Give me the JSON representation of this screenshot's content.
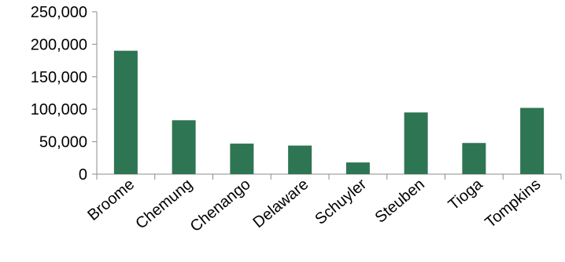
{
  "chart_data": {
    "type": "bar",
    "title": "",
    "xlabel": "",
    "ylabel": "",
    "categories": [
      "Broome",
      "Chemung",
      "Chenango",
      "Delaware",
      "Schuyler",
      "Steuben",
      "Tioga",
      "Tompkins"
    ],
    "values": [
      190000,
      83000,
      47000,
      44000,
      18000,
      95000,
      48000,
      102000
    ],
    "ylim": [
      0,
      250000
    ],
    "yticks": [
      0,
      50000,
      100000,
      150000,
      200000,
      250000
    ],
    "ytick_labels": [
      "0",
      "50,000",
      "100,000",
      "150,000",
      "200,000",
      "250,000"
    ],
    "bar_color": "#2e7553",
    "grid": false,
    "legend": "none"
  }
}
